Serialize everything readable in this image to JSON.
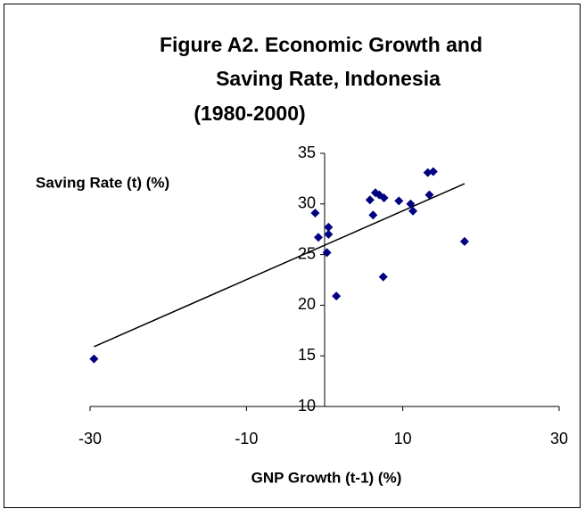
{
  "chart_data": {
    "type": "scatter",
    "title": [
      "Figure A2. Economic Growth and",
      "Saving Rate, Indonesia",
      "(1980-2000)"
    ],
    "x_label": "GNP Growth (t-1) (%)",
    "y_label": "Saving Rate (t) (%)",
    "series": [
      {
        "color": "#000080",
        "x": [
          -29.5,
          -1.2,
          -0.8,
          0.5,
          0.5,
          0.3,
          1.5,
          5.8,
          6.2,
          6.5,
          7.0,
          7.6,
          7.5,
          9.5,
          11.0,
          11.3,
          13.2,
          13.4,
          13.9,
          17.9
        ],
        "values": [
          14.7,
          29.1,
          26.7,
          27.7,
          27.0,
          25.2,
          20.9,
          30.4,
          28.9,
          31.1,
          30.9,
          30.6,
          22.8,
          30.3,
          30.0,
          29.3,
          33.1,
          30.9,
          33.2,
          26.3
        ]
      }
    ],
    "trendline": {
      "color": "#000000",
      "x": [
        -29.5,
        17.9
      ],
      "values": [
        15.9,
        32.0
      ]
    },
    "xlim": [
      -30,
      30
    ],
    "xticks": [
      -30,
      -10,
      10,
      30
    ],
    "ylim": [
      10,
      35
    ],
    "yticks": [
      10,
      15,
      20,
      25,
      30,
      35
    ],
    "grid": false
  }
}
